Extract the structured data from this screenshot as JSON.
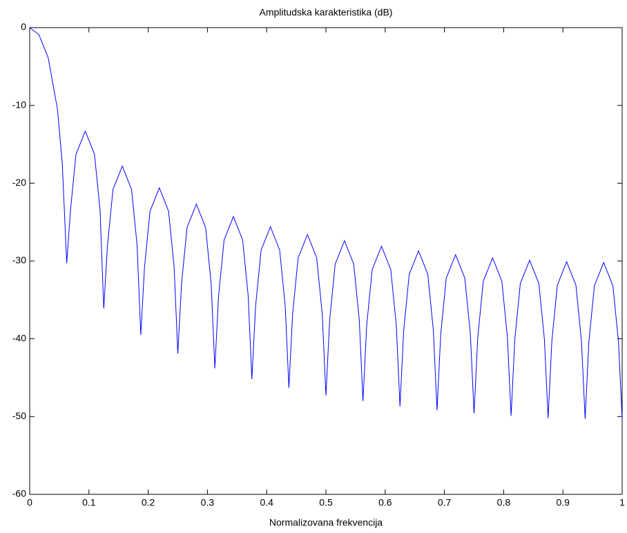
{
  "chart_data": {
    "type": "line",
    "title": "Amplitudska karakteristika (dB)",
    "x_label": "Normalizovana frekvencija",
    "xlim": [
      0,
      1
    ],
    "ylim": [
      -60,
      0
    ],
    "xticks": [
      0,
      0.1,
      0.2,
      0.3,
      0.4,
      0.5,
      0.6,
      0.7,
      0.8,
      0.9,
      1
    ],
    "yticks": [
      -60,
      -50,
      -40,
      -30,
      -20,
      -10,
      0
    ],
    "grid": false,
    "series": [
      {
        "color": "#0000ff",
        "x": [
          0,
          0.0156,
          0.0313,
          0.0469,
          0.055,
          0.0625,
          0.0688,
          0.0781,
          0.0938,
          0.1094,
          0.1188,
          0.125,
          0.1313,
          0.1406,
          0.1563,
          0.1719,
          0.1813,
          0.1875,
          0.1938,
          0.2031,
          0.2188,
          0.2344,
          0.2438,
          0.25,
          0.2563,
          0.2656,
          0.2813,
          0.2969,
          0.3063,
          0.3125,
          0.3188,
          0.3281,
          0.3438,
          0.3594,
          0.3688,
          0.375,
          0.3813,
          0.3906,
          0.4063,
          0.4219,
          0.4313,
          0.4375,
          0.4438,
          0.4531,
          0.4688,
          0.4844,
          0.4938,
          0.5,
          0.5063,
          0.5156,
          0.5313,
          0.5469,
          0.5563,
          0.5625,
          0.5688,
          0.5781,
          0.5938,
          0.6094,
          0.6188,
          0.625,
          0.6313,
          0.6406,
          0.6563,
          0.6719,
          0.6813,
          0.6875,
          0.6938,
          0.7031,
          0.7188,
          0.7344,
          0.7438,
          0.75,
          0.7563,
          0.7656,
          0.7813,
          0.7969,
          0.8063,
          0.8125,
          0.8188,
          0.8281,
          0.8438,
          0.8594,
          0.8688,
          0.875,
          0.8813,
          0.8906,
          0.9063,
          0.9219,
          0.9313,
          0.9375,
          0.9438,
          0.9531,
          0.9688,
          0.9844,
          0.9938,
          1
        ],
        "values": [
          0,
          -0.9,
          -3.9,
          -10.5,
          -17.5,
          -30.3,
          -23.5,
          -16.3,
          -13.3,
          -16.3,
          -23.5,
          -36.1,
          -28,
          -20.8,
          -17.8,
          -20.8,
          -28,
          -39.5,
          -30.8,
          -23.6,
          -20.6,
          -23.6,
          -30.8,
          -41.9,
          -32.9,
          -25.7,
          -22.7,
          -25.7,
          -32.9,
          -43.8,
          -34.5,
          -27.3,
          -24.3,
          -27.3,
          -34.5,
          -45.2,
          -35.8,
          -28.6,
          -25.6,
          -28.6,
          -35.8,
          -46.3,
          -36.8,
          -29.6,
          -26.6,
          -29.6,
          -36.8,
          -47.3,
          -37.6,
          -30.4,
          -27.4,
          -30.4,
          -37.6,
          -48,
          -38.3,
          -31.1,
          -28.1,
          -31.1,
          -38.3,
          -48.7,
          -38.9,
          -31.7,
          -28.7,
          -31.7,
          -38.9,
          -49.2,
          -39.4,
          -32.2,
          -29.2,
          -32.2,
          -39.4,
          -49.6,
          -39.8,
          -32.6,
          -29.6,
          -32.6,
          -39.8,
          -49.9,
          -40.1,
          -32.9,
          -29.9,
          -32.9,
          -40.1,
          -50.2,
          -40.3,
          -33.1,
          -30.1,
          -33.1,
          -40.3,
          -50.3,
          -40.4,
          -33.2,
          -30.2,
          -33.2,
          -40.4,
          -50.3
        ]
      }
    ]
  }
}
